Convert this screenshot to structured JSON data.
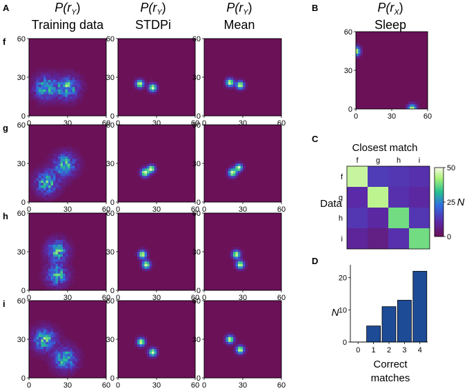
{
  "panel_labels": {
    "a": "A",
    "b": "B",
    "c": "C",
    "d": "D"
  },
  "column_titles": [
    {
      "prob": "P(r",
      "sub": "Y",
      "close": ")",
      "name": "Training data"
    },
    {
      "prob": "P(r",
      "sub": "Y",
      "close": ")",
      "name": "STDPi"
    },
    {
      "prob": "P(r",
      "sub": "Y",
      "close": ")",
      "name": "Mean"
    },
    {
      "prob": "P(r",
      "sub": "X",
      "close": ")",
      "name": "Sleep"
    }
  ],
  "row_labels": [
    "f",
    "g",
    "h",
    "i"
  ],
  "heatmap_ticks": [
    "0",
    "30",
    "60"
  ],
  "colors": {
    "background": "#6b1158",
    "bar": "#1e4b96",
    "bar_edge": "#000000"
  },
  "chart_data": [
    {
      "type": "heatmap",
      "id": "density-grid",
      "xlim": [
        0,
        60
      ],
      "ylim": [
        0,
        60
      ],
      "xticks": [
        0,
        30,
        60
      ],
      "yticks": [
        0,
        30,
        60
      ],
      "rows": [
        {
          "label": "f",
          "training": [
            {
              "x": 13,
              "y": 22,
              "s": 6
            },
            {
              "x": 30,
              "y": 22,
              "s": 6
            }
          ],
          "stdpi": [
            {
              "x": 17,
              "y": 25,
              "s": 2.2
            },
            {
              "x": 27,
              "y": 22,
              "s": 2.2
            }
          ],
          "mean": [
            {
              "x": 20,
              "y": 26,
              "s": 2.2
            },
            {
              "x": 28,
              "y": 24,
              "s": 2.2
            }
          ]
        },
        {
          "label": "g",
          "training": [
            {
              "x": 14,
              "y": 15,
              "s": 6
            },
            {
              "x": 28,
              "y": 29,
              "s": 6
            }
          ],
          "stdpi": [
            {
              "x": 21,
              "y": 23,
              "s": 2.3
            },
            {
              "x": 26,
              "y": 26,
              "s": 2.0
            }
          ],
          "mean": [
            {
              "x": 22,
              "y": 23,
              "s": 2.3
            },
            {
              "x": 27,
              "y": 27,
              "s": 2.0
            }
          ]
        },
        {
          "label": "h",
          "training": [
            {
              "x": 22,
              "y": 31,
              "s": 5.5
            },
            {
              "x": 22,
              "y": 12,
              "s": 5.5
            }
          ],
          "stdpi": [
            {
              "x": 19,
              "y": 28,
              "s": 2.2
            },
            {
              "x": 22,
              "y": 20,
              "s": 2.2
            }
          ],
          "mean": [
            {
              "x": 25,
              "y": 28,
              "s": 2.2
            },
            {
              "x": 28,
              "y": 20,
              "s": 2.2
            }
          ]
        },
        {
          "label": "i",
          "training": [
            {
              "x": 12,
              "y": 30,
              "s": 6
            },
            {
              "x": 28,
              "y": 15,
              "s": 6
            }
          ],
          "stdpi": [
            {
              "x": 18,
              "y": 28,
              "s": 2.2
            },
            {
              "x": 27,
              "y": 20,
              "s": 2.2
            }
          ],
          "mean": [
            {
              "x": 20,
              "y": 30,
              "s": 2.2
            },
            {
              "x": 28,
              "y": 22,
              "s": 2.2
            }
          ]
        }
      ],
      "sleep": [
        {
          "x": 0,
          "y": 45,
          "s": 2.6
        },
        {
          "x": 47,
          "y": 0,
          "s": 2.6
        }
      ]
    },
    {
      "type": "heatmap",
      "id": "confusion-matrix",
      "title": "Closest match",
      "ylabel": "Data",
      "x_categories": [
        "f",
        "g",
        "h",
        "i"
      ],
      "y_categories": [
        "f",
        "g",
        "h",
        "i"
      ],
      "values": [
        [
          45,
          14,
          13,
          12
        ],
        [
          11,
          44,
          12,
          10
        ],
        [
          13,
          10,
          38,
          13
        ],
        [
          9,
          6,
          12,
          38
        ]
      ],
      "colorbar": {
        "label": "N",
        "range": [
          0,
          50
        ],
        "ticks": [
          0,
          25,
          50
        ],
        "ticklabels": [
          "0",
          "25",
          "50"
        ]
      }
    },
    {
      "type": "bar",
      "id": "correct-matches",
      "categories": [
        "0",
        "1",
        "2",
        "3",
        "4"
      ],
      "values": [
        0,
        5,
        11,
        13,
        22
      ],
      "xlabel": "Correct matches",
      "xlabel_lines": [
        "Correct",
        "matches"
      ],
      "ylabel": "N",
      "ylim": [
        0,
        24
      ],
      "yticks": [
        0,
        10,
        20
      ],
      "yticklabels": [
        "0",
        "10",
        "20"
      ]
    }
  ]
}
